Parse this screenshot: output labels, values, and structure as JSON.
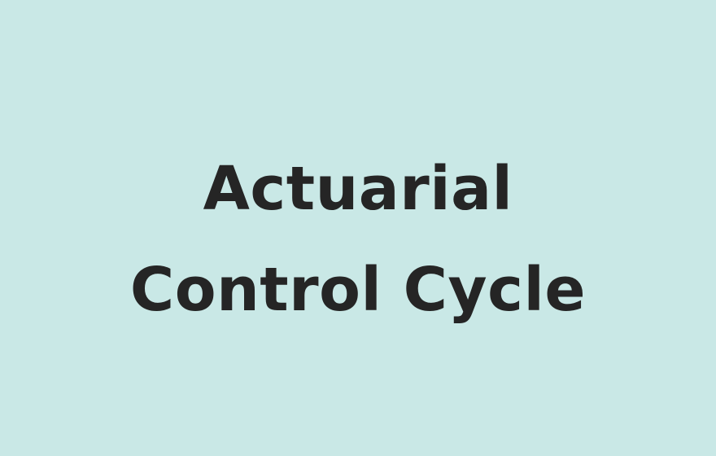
{
  "title": {
    "line1": "Actuarial",
    "line2": "Control Cycle"
  },
  "colors": {
    "background": "#c9e8e6",
    "text": "#252525"
  }
}
